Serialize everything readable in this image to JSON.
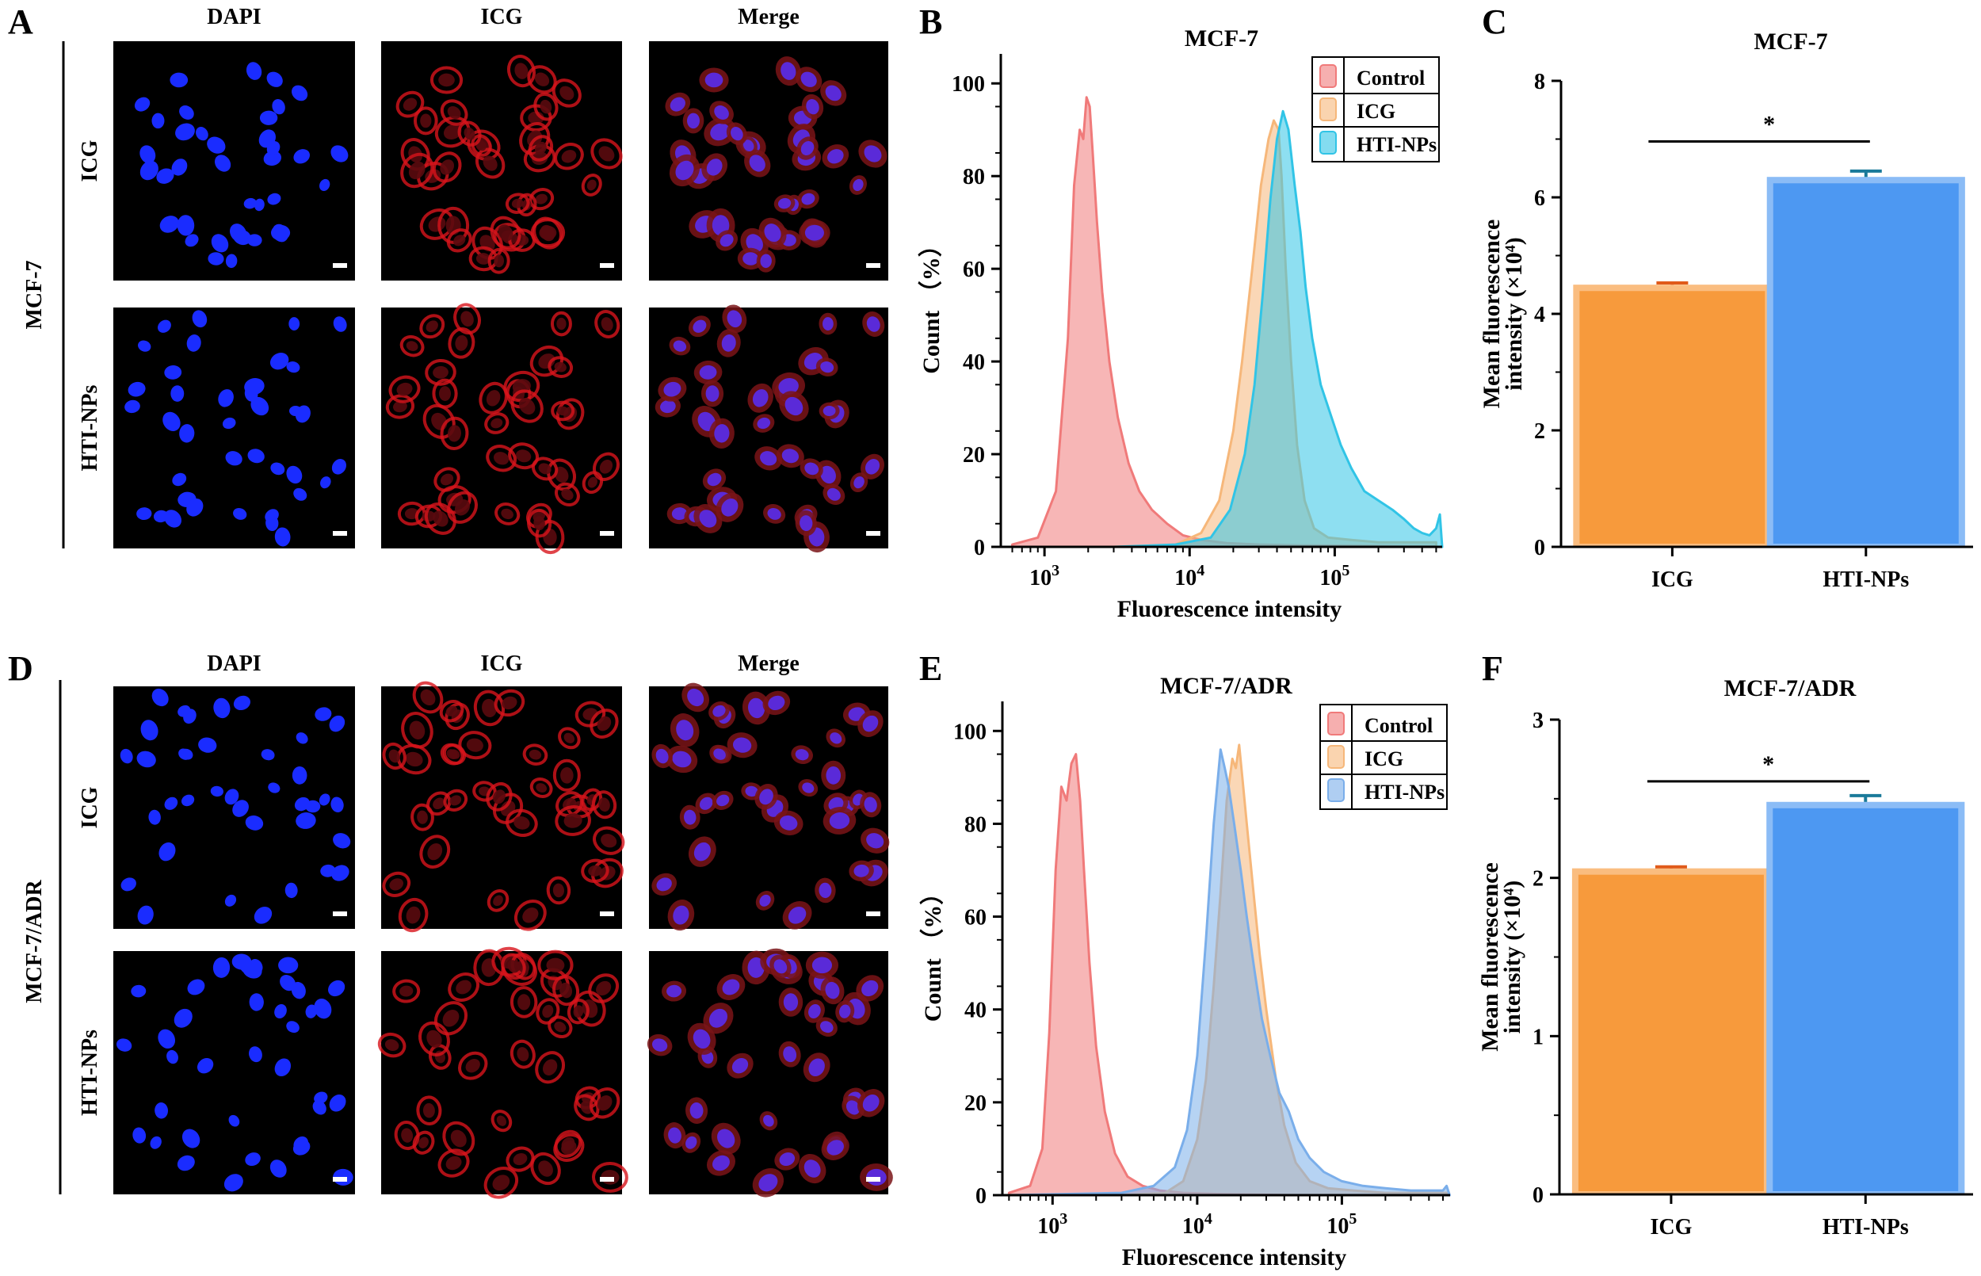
{
  "panel_letters": [
    "A",
    "B",
    "C",
    "D",
    "E",
    "F"
  ],
  "colors": {
    "control": "#f07a7a",
    "icg": "#f6b77a",
    "hti_b": "#31c4e6",
    "hti_e": "#7aaeea",
    "bar_icg": "#f79a3c",
    "bar_hti": "#4d98f2",
    "dapi": "#1a2cff",
    "icg_red": "#d8141c"
  },
  "microscopy": [
    {
      "letter": "A",
      "cell_line": "MCF-7",
      "columns": [
        "DAPI",
        "ICG",
        "Merge"
      ],
      "rows": [
        "ICG",
        "HTI-NPs"
      ]
    },
    {
      "letter": "D",
      "cell_line": "MCF-7/ADR",
      "columns": [
        "DAPI",
        "ICG",
        "Merge"
      ],
      "rows": [
        "ICG",
        "HTI-NPs"
      ]
    }
  ],
  "chart_data": [
    {
      "id": "B",
      "type": "area",
      "title": "MCF-7",
      "xlabel": "Fluorescence intensity",
      "ylabel": "Count （%）",
      "x_scale": "log",
      "xlim": [
        500,
        550000
      ],
      "ylim": [
        0,
        105
      ],
      "x_ticks": [
        {
          "value": 1000,
          "label": "10",
          "exp": "3"
        },
        {
          "value": 10000,
          "label": "10",
          "exp": "4"
        },
        {
          "value": 100000,
          "label": "10",
          "exp": "5"
        }
      ],
      "y_ticks": [
        0,
        20,
        40,
        60,
        80,
        100
      ],
      "legend": "top-right",
      "series": [
        {
          "name": "Control",
          "color_key": "control",
          "x": [
            600,
            900,
            1200,
            1450,
            1600,
            1750,
            1850,
            1950,
            2050,
            2150,
            2300,
            2500,
            2800,
            3200,
            3800,
            4500,
            5500,
            7000,
            9000,
            12000,
            18000,
            30000,
            60000,
            150000,
            300000,
            500000
          ],
          "y": [
            0.5,
            2,
            12,
            45,
            78,
            90,
            88,
            97,
            95,
            85,
            70,
            55,
            40,
            28,
            18,
            12,
            8,
            5,
            2.5,
            1.5,
            0.8,
            0.5,
            0.3,
            0.2,
            0.1,
            0.1
          ]
        },
        {
          "name": "ICG",
          "color_key": "icg",
          "x": [
            600,
            3000,
            8000,
            12000,
            16000,
            20000,
            23000,
            27000,
            31000,
            35000,
            38000,
            41000,
            43000,
            46000,
            50000,
            55000,
            62000,
            72000,
            90000,
            130000,
            200000,
            300000,
            500000
          ],
          "y": [
            0,
            0,
            0.5,
            3,
            10,
            25,
            40,
            60,
            78,
            88,
            92,
            90,
            80,
            60,
            40,
            22,
            10,
            4,
            2,
            1.5,
            1,
            1,
            1
          ]
        },
        {
          "name": "HTI-NPs",
          "color_key": "hti_b",
          "x": [
            600,
            3000,
            8000,
            14000,
            19000,
            24000,
            28000,
            32000,
            36000,
            40000,
            44000,
            48000,
            53000,
            58000,
            63000,
            70000,
            80000,
            95000,
            110000,
            130000,
            160000,
            200000,
            250000,
            300000,
            350000,
            400000,
            450000,
            500000,
            530000,
            550000
          ],
          "y": [
            0,
            0,
            0.5,
            2,
            8,
            20,
            35,
            55,
            75,
            88,
            94,
            90,
            78,
            68,
            56,
            45,
            35,
            28,
            22,
            17,
            12,
            10,
            8,
            6,
            4,
            3,
            2.5,
            4,
            7,
            0
          ]
        }
      ]
    },
    {
      "id": "C",
      "type": "bar",
      "title": "MCF-7",
      "ylabel": "Mean fluorescence intensity (×10⁴)",
      "ylabel_line1": "Mean fluorescence",
      "ylabel_line2": "intensity (×10⁴)",
      "categories": [
        "ICG",
        "HTI-NPs"
      ],
      "values": [
        4.5,
        6.35
      ],
      "errors": [
        0.03,
        0.1
      ],
      "ylim": [
        0,
        8
      ],
      "y_ticks": [
        0,
        2,
        4,
        6,
        8
      ],
      "significance": "*"
    },
    {
      "id": "E",
      "type": "area",
      "title": "MCF-7/ADR",
      "xlabel": "Fluorescence intensity",
      "ylabel": "Count （%）",
      "x_scale": "log",
      "xlim": [
        450,
        560000
      ],
      "ylim": [
        0,
        105
      ],
      "x_ticks": [
        {
          "value": 1000,
          "label": "10",
          "exp": "3"
        },
        {
          "value": 10000,
          "label": "10",
          "exp": "4"
        },
        {
          "value": 100000,
          "label": "10",
          "exp": "5"
        }
      ],
      "y_ticks": [
        0,
        20,
        40,
        60,
        80,
        100
      ],
      "legend": "top-right",
      "series": [
        {
          "name": "Control",
          "color_key": "control",
          "x": [
            500,
            700,
            850,
            950,
            1050,
            1150,
            1250,
            1350,
            1450,
            1550,
            1650,
            1800,
            2000,
            2300,
            2700,
            3300,
            4200,
            5500,
            8000,
            15000,
            50000,
            200000,
            550000
          ],
          "y": [
            0.5,
            2,
            10,
            35,
            70,
            88,
            85,
            93,
            95,
            85,
            70,
            50,
            32,
            18,
            9,
            4,
            2,
            1,
            0.5,
            0.2,
            0,
            0,
            0
          ]
        },
        {
          "name": "ICG",
          "color_key": "icg",
          "x": [
            500,
            3000,
            6000,
            8000,
            10000,
            11500,
            13000,
            14500,
            16000,
            17500,
            18500,
            19500,
            20500,
            22000,
            24000,
            27000,
            30000,
            35000,
            40000,
            48000,
            60000,
            80000,
            120000,
            200000,
            350000,
            550000
          ],
          "y": [
            0,
            0,
            0.5,
            3,
            12,
            25,
            45,
            65,
            85,
            94,
            92,
            97,
            90,
            80,
            68,
            52,
            40,
            25,
            15,
            7,
            3,
            1.5,
            1,
            0.5,
            0.5,
            0.5
          ]
        },
        {
          "name": "HTI-NPs",
          "color_key": "hti_e",
          "x": [
            500,
            3000,
            5000,
            7000,
            8500,
            10000,
            11500,
            13000,
            14500,
            15500,
            16500,
            18000,
            20000,
            22000,
            25000,
            28000,
            32000,
            37000,
            43000,
            50000,
            60000,
            75000,
            100000,
            140000,
            200000,
            300000,
            420000,
            500000,
            530000,
            556000
          ],
          "y": [
            0,
            0.5,
            2,
            6,
            14,
            30,
            55,
            80,
            96,
            92,
            88,
            80,
            70,
            60,
            48,
            38,
            30,
            22,
            18,
            12,
            8,
            5,
            3,
            2,
            1.5,
            1,
            1,
            1,
            2,
            0
          ]
        }
      ]
    },
    {
      "id": "F",
      "type": "bar",
      "title": "MCF-7/ADR",
      "ylabel": "Mean fluorescence intensity (×10⁴)",
      "ylabel_line1": "Mean fluorescence",
      "ylabel_line2": "intensity (×10⁴)",
      "categories": [
        "ICG",
        "HTI-NPs"
      ],
      "values": [
        2.06,
        2.48
      ],
      "errors": [
        0.01,
        0.04
      ],
      "ylim": [
        0,
        3
      ],
      "y_ticks": [
        0,
        1,
        2,
        3
      ],
      "significance": "*"
    }
  ]
}
